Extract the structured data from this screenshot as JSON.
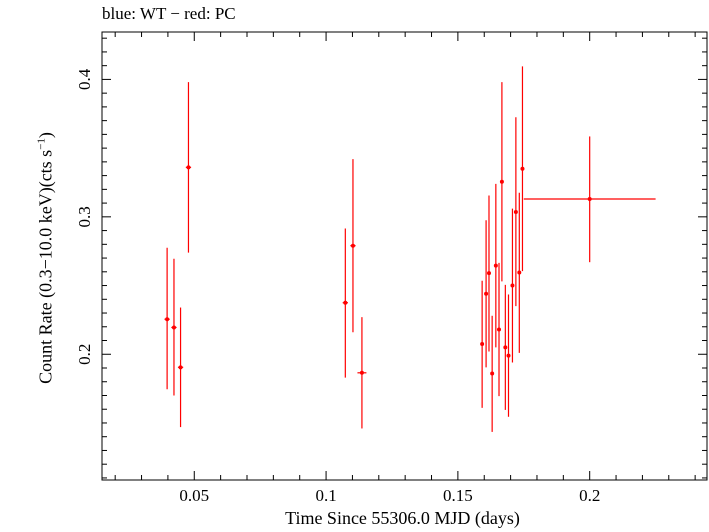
{
  "chart_data": {
    "type": "scatter",
    "title": "blue: WT − red: PC",
    "xlabel": "Time Since 55306.0 MJD (days)",
    "ylabel_main": "Count Rate (0.3−10.0 keV)(cts s",
    "ylabel_sup": "−1",
    "ylabel_end": ")",
    "xlim": [
      0.015,
      0.2445
    ],
    "ylim": [
      0.1085,
      0.4345
    ],
    "x_ticks": [
      0.05,
      0.1,
      0.15,
      0.2
    ],
    "x_tick_labels": [
      "0.05",
      "0.1",
      "0.15",
      "0.2"
    ],
    "y_ticks": [
      0.2,
      0.3,
      0.4
    ],
    "y_tick_labels": [
      "0.2",
      "0.3",
      "0.4"
    ],
    "grid": false,
    "series": [
      {
        "color": "#ff0000",
        "points": [
          {
            "x": 0.0397,
            "y": 0.2255,
            "xerr": 0.001,
            "ylo": 0.1745,
            "yhi": 0.2775
          },
          {
            "x": 0.0423,
            "y": 0.2195,
            "xerr": 0.001,
            "ylo": 0.17,
            "yhi": 0.2695
          },
          {
            "x": 0.0448,
            "y": 0.1905,
            "xerr": 0.001,
            "ylo": 0.147,
            "yhi": 0.234
          },
          {
            "x": 0.0478,
            "y": 0.336,
            "xerr": 0.001,
            "ylo": 0.274,
            "yhi": 0.398
          },
          {
            "x": 0.1073,
            "y": 0.2375,
            "xerr": 0.001,
            "ylo": 0.183,
            "yhi": 0.2915
          },
          {
            "x": 0.1102,
            "y": 0.279,
            "xerr": 0.001,
            "ylo": 0.216,
            "yhi": 0.342
          },
          {
            "x": 0.1136,
            "y": 0.1865,
            "xerr": 0.0017,
            "ylo": 0.146,
            "yhi": 0.227
          },
          {
            "x": 0.1592,
            "y": 0.2075,
            "xerr": 0.0006,
            "ylo": 0.161,
            "yhi": 0.2535
          },
          {
            "x": 0.1607,
            "y": 0.244,
            "xerr": 0.0006,
            "ylo": 0.1905,
            "yhi": 0.2975
          },
          {
            "x": 0.1618,
            "y": 0.259,
            "xerr": 0.0006,
            "ylo": 0.202,
            "yhi": 0.3155
          },
          {
            "x": 0.163,
            "y": 0.186,
            "xerr": 0.0006,
            "ylo": 0.1435,
            "yhi": 0.228
          },
          {
            "x": 0.1644,
            "y": 0.2645,
            "xerr": 0.0006,
            "ylo": 0.205,
            "yhi": 0.324
          },
          {
            "x": 0.1656,
            "y": 0.218,
            "xerr": 0.0006,
            "ylo": 0.1695,
            "yhi": 0.2665
          },
          {
            "x": 0.1667,
            "y": 0.3255,
            "xerr": 0.0006,
            "ylo": 0.253,
            "yhi": 0.398
          },
          {
            "x": 0.168,
            "y": 0.205,
            "xerr": 0.0006,
            "ylo": 0.1595,
            "yhi": 0.2505
          },
          {
            "x": 0.1692,
            "y": 0.199,
            "xerr": 0.0006,
            "ylo": 0.1545,
            "yhi": 0.2435
          },
          {
            "x": 0.1707,
            "y": 0.25,
            "xerr": 0.0006,
            "ylo": 0.194,
            "yhi": 0.306
          },
          {
            "x": 0.172,
            "y": 0.3035,
            "xerr": 0.0006,
            "ylo": 0.235,
            "yhi": 0.3725
          },
          {
            "x": 0.1733,
            "y": 0.2595,
            "xerr": 0.0006,
            "ylo": 0.201,
            "yhi": 0.3175
          },
          {
            "x": 0.1745,
            "y": 0.335,
            "xerr": 0.0006,
            "ylo": 0.2605,
            "yhi": 0.4095
          },
          {
            "x": 0.2,
            "y": 0.313,
            "xerr": 0.025,
            "ylo": 0.267,
            "yhi": 0.3585
          }
        ]
      }
    ]
  }
}
